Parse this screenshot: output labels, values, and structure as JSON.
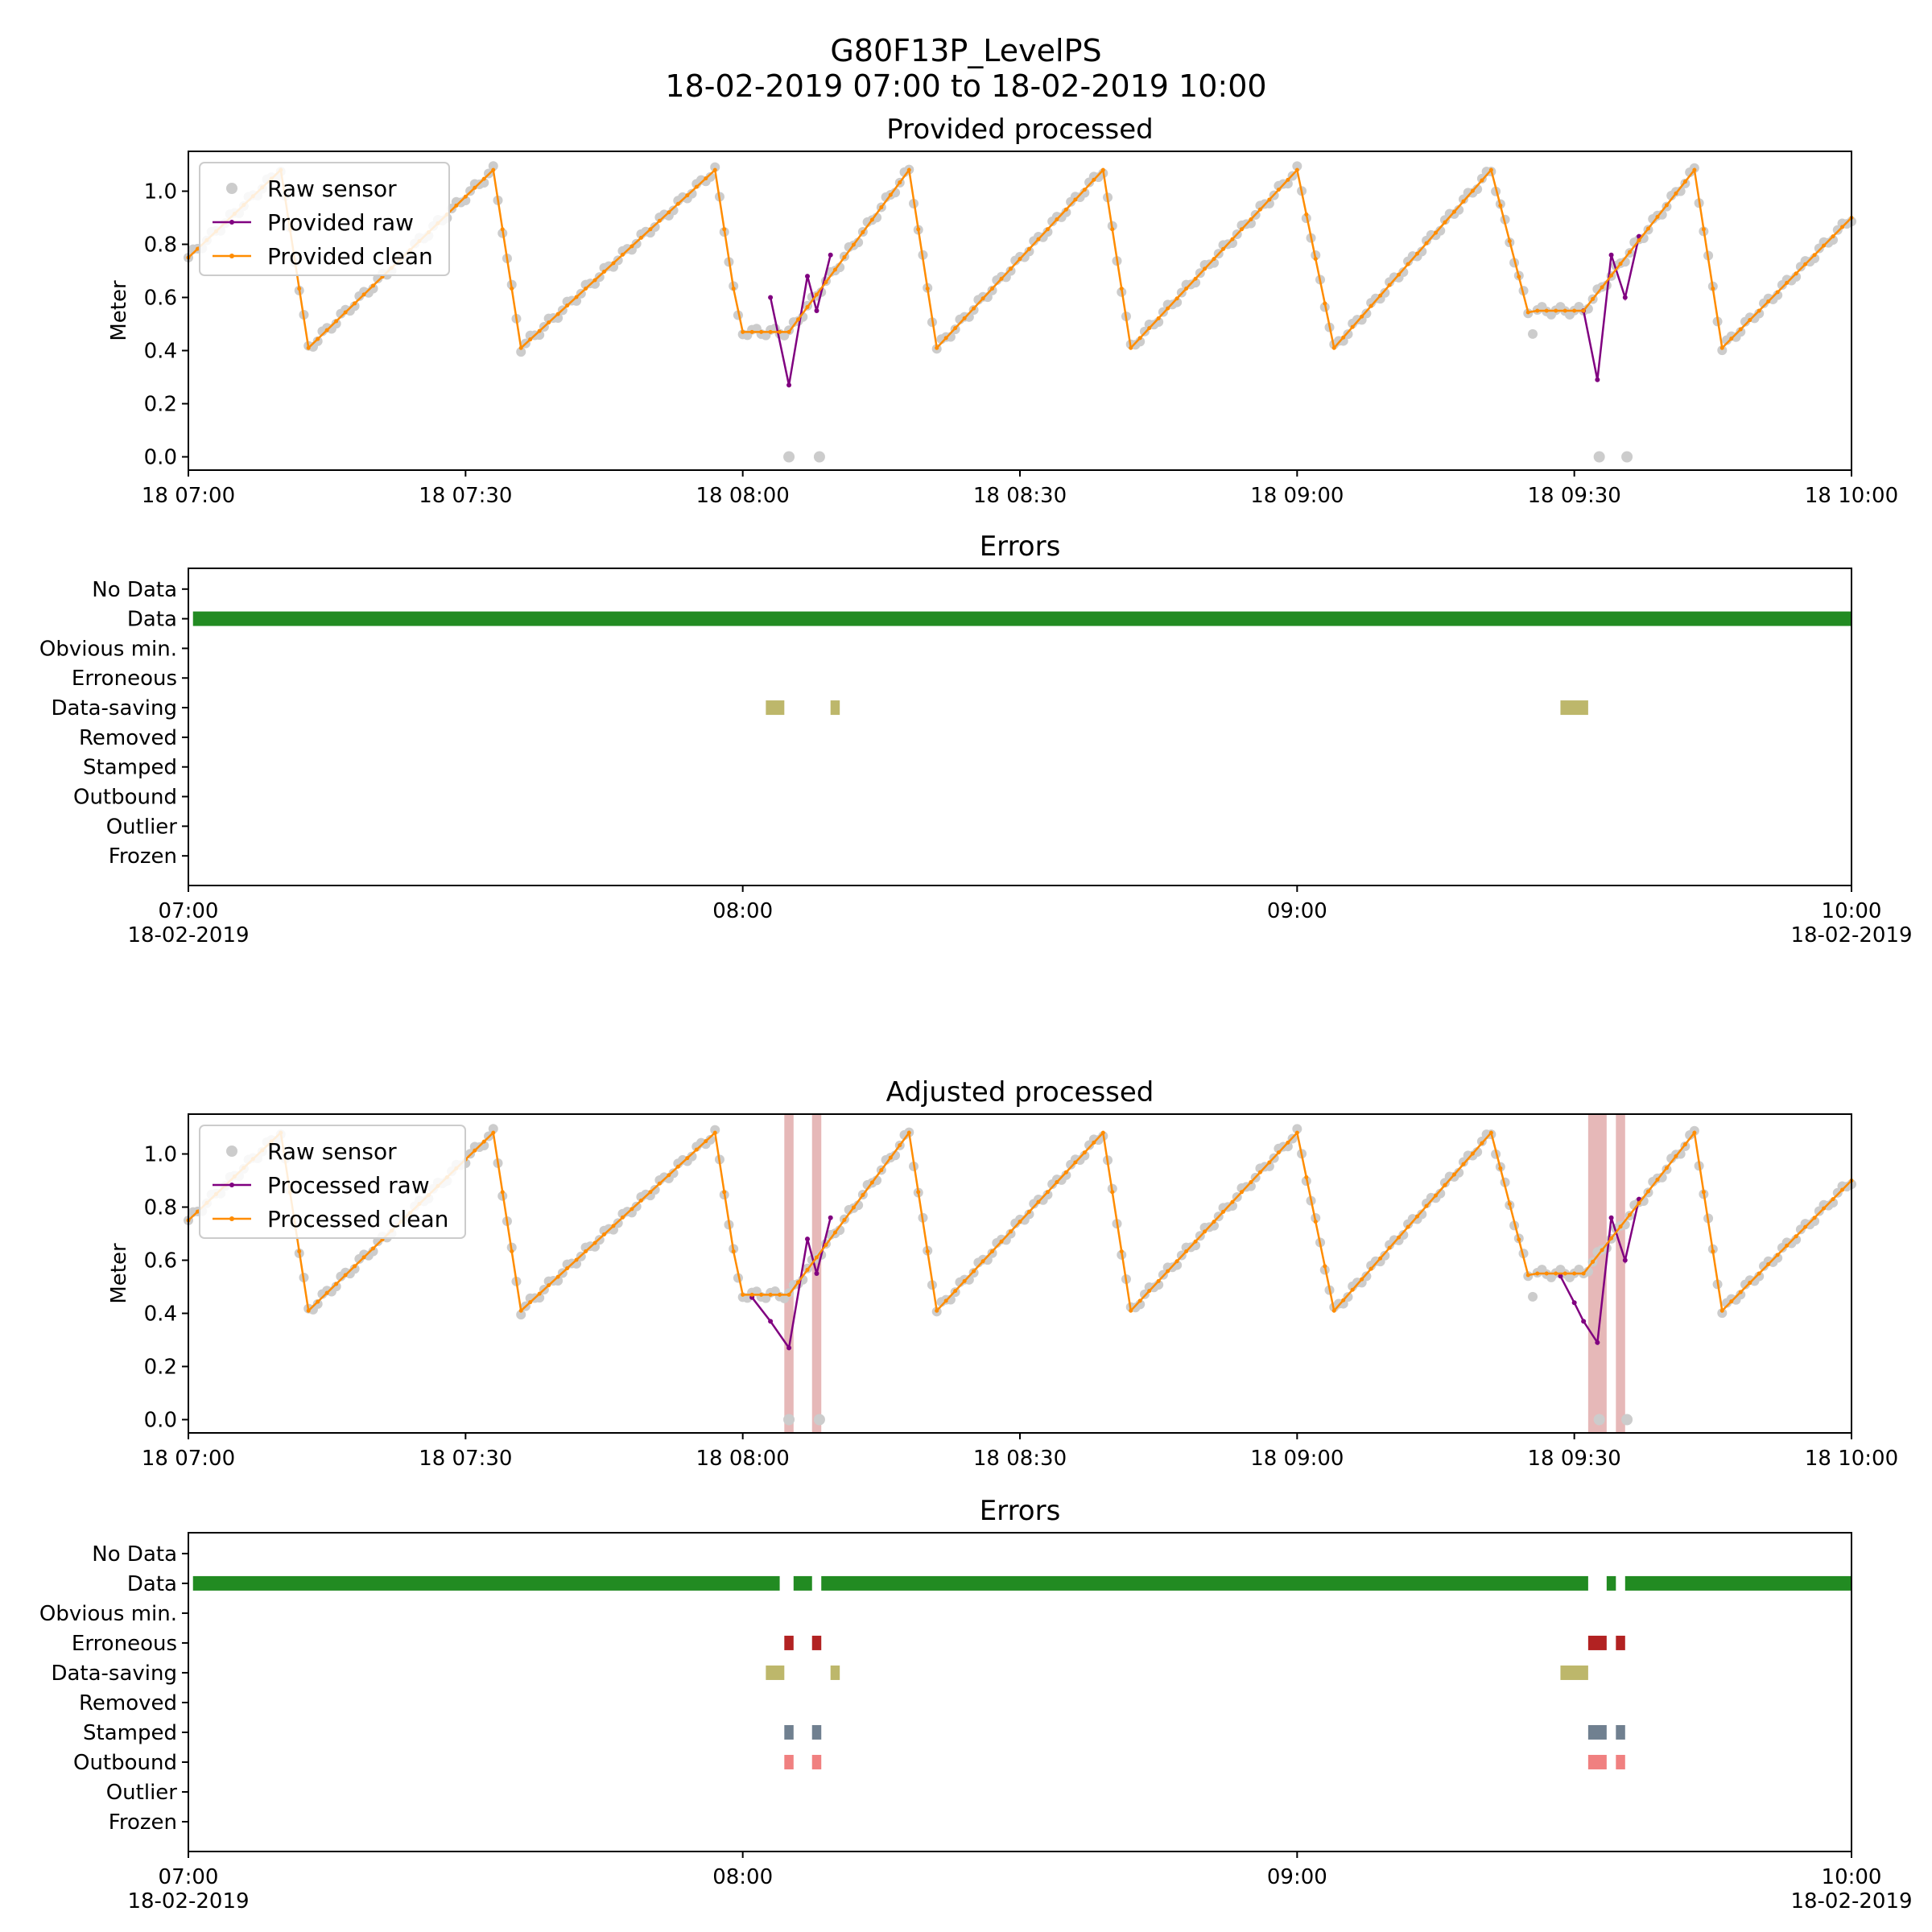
{
  "suptitle": {
    "line1": "G80F13P_LevelPS",
    "line2": "18-02-2019 07:00 to 18-02-2019 10:00"
  },
  "chart_data": [
    {
      "type": "line",
      "title": "Provided processed",
      "ylabel": "Meter",
      "xlabel": "",
      "x_range": [
        "2019-02-18 07:00",
        "2019-02-18 10:00"
      ],
      "x_ticks": [
        "18 07:00",
        "18 07:30",
        "18 08:00",
        "18 08:30",
        "18 09:00",
        "18 09:30",
        "18 10:00"
      ],
      "ylim": [
        -0.05,
        1.15
      ],
      "y_ticks": [
        "0.0",
        "0.2",
        "0.4",
        "0.6",
        "0.8",
        "1.0"
      ],
      "legend_position": "upper-left",
      "series": [
        {
          "name": "Raw sensor",
          "style": "scatter",
          "color": "#cccccc"
        },
        {
          "name": "Provided raw",
          "style": "line-marker",
          "color": "#800080"
        },
        {
          "name": "Provided clean",
          "style": "line-marker",
          "color": "#ff8c00"
        }
      ],
      "dropouts_min": [
        65,
        68.3,
        152.7,
        155.7
      ],
      "raw_dips": [
        {
          "x": [
            63,
            65,
            67,
            68,
            69.5
          ],
          "y": [
            0.6,
            0.27,
            0.68,
            0.55,
            0.76
          ]
        },
        {
          "x": [
            151,
            152.5,
            154,
            155.5,
            157
          ],
          "y": [
            0.55,
            0.29,
            0.76,
            0.6,
            0.83
          ]
        }
      ]
    },
    {
      "type": "bar",
      "title": "Errors",
      "x_ticks": [
        "07:00\n18-02-2019",
        "08:00",
        "09:00",
        "10:00\n18-02-2019"
      ],
      "categories": [
        "No Data",
        "Data",
        "Obvious min.",
        "Erroneous",
        "Data-saving",
        "Removed",
        "Stamped",
        "Outbound",
        "Outlier",
        "Frozen"
      ],
      "intervals_min": {
        "Data": [
          [
            0.5,
            180
          ]
        ],
        "Data-saving": [
          [
            62.5,
            64.5
          ],
          [
            69.5,
            70.5
          ],
          [
            148.5,
            151.5
          ]
        ]
      },
      "colors": {
        "Data": "#228b22",
        "Data-saving": "#bdb76b"
      }
    },
    {
      "type": "line",
      "title": "Adjusted processed",
      "ylabel": "Meter",
      "x_range": [
        "2019-02-18 07:00",
        "2019-02-18 10:00"
      ],
      "x_ticks": [
        "18 07:00",
        "18 07:30",
        "18 08:00",
        "18 08:30",
        "18 09:00",
        "18 09:30",
        "18 10:00"
      ],
      "ylim": [
        -0.05,
        1.15
      ],
      "y_ticks": [
        "0.0",
        "0.2",
        "0.4",
        "0.6",
        "0.8",
        "1.0"
      ],
      "legend_position": "upper-left",
      "series": [
        {
          "name": "Raw sensor",
          "style": "scatter",
          "color": "#cccccc"
        },
        {
          "name": "Processed raw",
          "style": "line-marker",
          "color": "#800080"
        },
        {
          "name": "Processed clean",
          "style": "line-marker",
          "color": "#ff8c00"
        }
      ],
      "error_spans_min": [
        [
          64.5,
          65.5
        ],
        [
          67.5,
          68.5
        ],
        [
          151.5,
          153.5
        ],
        [
          154.5,
          155.5
        ]
      ],
      "raw_dips": [
        {
          "x": [
            61,
            63,
            65,
            67,
            68,
            69.5
          ],
          "y": [
            0.46,
            0.37,
            0.27,
            0.68,
            0.55,
            0.76
          ]
        },
        {
          "x": [
            148.5,
            150,
            151,
            152.5,
            154,
            155.5,
            157
          ],
          "y": [
            0.54,
            0.44,
            0.37,
            0.29,
            0.76,
            0.6,
            0.83
          ]
        }
      ]
    },
    {
      "type": "bar",
      "title": "Errors",
      "x_ticks": [
        "07:00\n18-02-2019",
        "08:00",
        "09:00",
        "10:00\n18-02-2019"
      ],
      "categories": [
        "No Data",
        "Data",
        "Obvious min.",
        "Erroneous",
        "Data-saving",
        "Removed",
        "Stamped",
        "Outbound",
        "Outlier",
        "Frozen"
      ],
      "intervals_min": {
        "Data": [
          [
            0.5,
            64
          ],
          [
            65.5,
            67.5
          ],
          [
            68.5,
            151.5
          ],
          [
            153.5,
            154.5
          ],
          [
            155.5,
            180
          ]
        ],
        "Erroneous": [
          [
            64.5,
            65.5
          ],
          [
            67.5,
            68.5
          ],
          [
            151.5,
            153.5
          ],
          [
            154.5,
            155.5
          ]
        ],
        "Data-saving": [
          [
            62.5,
            64.5
          ],
          [
            69.5,
            70.5
          ],
          [
            148.5,
            151.5
          ]
        ],
        "Stamped": [
          [
            64.5,
            65.5
          ],
          [
            67.5,
            68.5
          ],
          [
            151.5,
            153.5
          ],
          [
            154.5,
            155.5
          ]
        ],
        "Outbound": [
          [
            64.5,
            65.5
          ],
          [
            67.5,
            68.5
          ],
          [
            151.5,
            153.5
          ],
          [
            154.5,
            155.5
          ]
        ]
      },
      "colors": {
        "Data": "#228b22",
        "Erroneous": "#b22222",
        "Data-saving": "#bdb76b",
        "Stamped": "#708090",
        "Outbound": "#f08080"
      }
    }
  ],
  "level_profile": {
    "peaks_min": [
      10,
      33,
      57,
      78,
      99,
      120,
      141,
      163
    ],
    "troughs_min": [
      13,
      36,
      60,
      81,
      102,
      124,
      146,
      166
    ],
    "peak_value": 1.08,
    "trough_value": 0.41,
    "start_value": 0.75,
    "end_value": 0.9,
    "flat_segments": [
      {
        "from": 60,
        "to": 65,
        "value": 0.47
      },
      {
        "from": 146,
        "to": 151,
        "value": 0.55
      }
    ]
  }
}
